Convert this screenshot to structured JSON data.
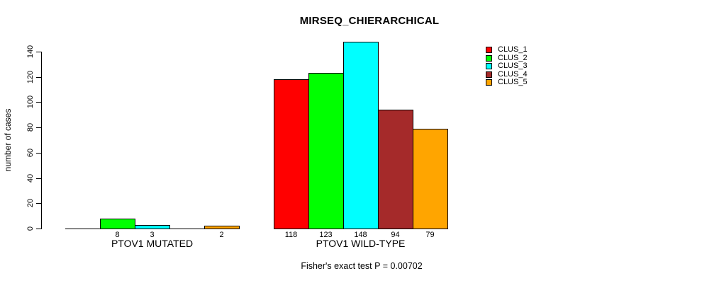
{
  "chart_data": {
    "type": "bar",
    "title": "MIRSEQ_CHIERARCHICAL",
    "ylabel": "number of cases",
    "xlabel": "",
    "ylim": [
      0,
      140
    ],
    "yticks": [
      0,
      20,
      40,
      60,
      80,
      100,
      120,
      140
    ],
    "grid": false,
    "legend_position": "top-right-outside",
    "series_names": [
      "CLUS_1",
      "CLUS_2",
      "CLUS_3",
      "CLUS_4",
      "CLUS_5"
    ],
    "colors": [
      "#ff0000",
      "#00ff00",
      "#00ffff",
      "#a52a2a",
      "#ffa500"
    ],
    "groups": [
      {
        "label": "PTOV1 MUTATED",
        "values": [
          0,
          8,
          3,
          0,
          2
        ]
      },
      {
        "label": "PTOV1 WILD-TYPE",
        "values": [
          118,
          123,
          148,
          94,
          79
        ]
      }
    ],
    "bar_value_labels_shown_for_zero": false,
    "note": "Fisher's exact test P = 0.00702",
    "axis_color": "#000000",
    "background_color": "#ffffff"
  }
}
